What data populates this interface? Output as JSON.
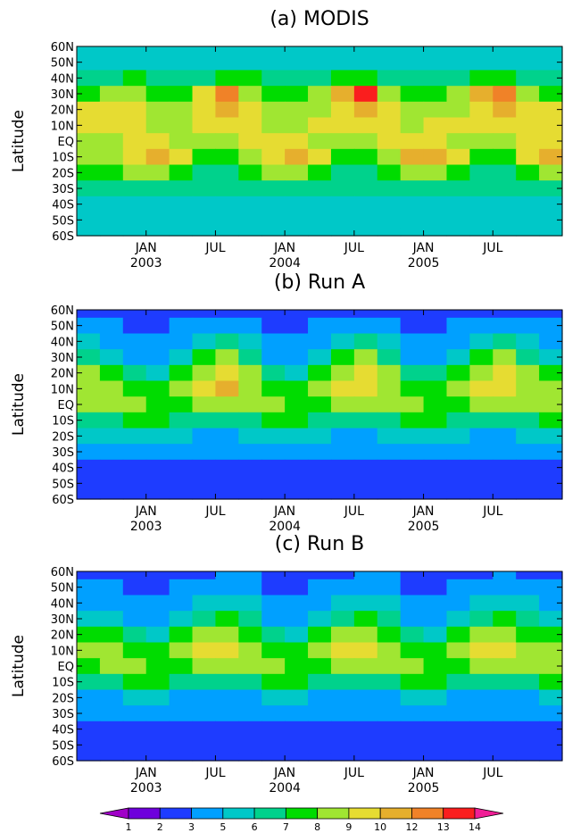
{
  "chart_data": [
    {
      "type": "heatmap",
      "title": "(a) MODIS",
      "ylabel": "Latitude",
      "yticks": [
        "60N",
        "50N",
        "40N",
        "30N",
        "20N",
        "10N",
        "EQ",
        "10S",
        "20S",
        "30S",
        "40S",
        "50S",
        "60S"
      ],
      "xticks": [
        {
          "month": "JAN",
          "year": "2003"
        },
        {
          "month": "JUL",
          "year": ""
        },
        {
          "month": "JAN",
          "year": "2004"
        },
        {
          "month": "JUL",
          "year": ""
        },
        {
          "month": "JAN",
          "year": "2005"
        },
        {
          "month": "JUL",
          "year": ""
        }
      ],
      "x_months": [
        "2002-08",
        "2002-10",
        "2002-12",
        "2003-02",
        "2003-04",
        "2003-06",
        "2003-08",
        "2003-10",
        "2003-12",
        "2004-02",
        "2004-04",
        "2004-06",
        "2004-08",
        "2004-10",
        "2004-12",
        "2005-02",
        "2005-04",
        "2005-06",
        "2005-08",
        "2005-10",
        "2005-12"
      ],
      "lat_bands": [
        "60N",
        "50N",
        "40N",
        "30N",
        "20N",
        "10N",
        "EQ",
        "10S",
        "20S",
        "30S",
        "40S",
        "50S",
        "60S"
      ],
      "values": [
        [
          5,
          5,
          5,
          5,
          5,
          5,
          5,
          5,
          5,
          5,
          5,
          5,
          5,
          5,
          5,
          5,
          5,
          5,
          5,
          5,
          5
        ],
        [
          5,
          5,
          5,
          5,
          5,
          5,
          5,
          5,
          5,
          5,
          5,
          5,
          5,
          5,
          5,
          5,
          5,
          5,
          5,
          5,
          5
        ],
        [
          6,
          6,
          7,
          6,
          6,
          6,
          7,
          7,
          6,
          6,
          6,
          7,
          7,
          6,
          6,
          6,
          6,
          7,
          7,
          6,
          6
        ],
        [
          7,
          8,
          8,
          7,
          7,
          9,
          12,
          8,
          7,
          7,
          8,
          10,
          13,
          8,
          7,
          7,
          8,
          10,
          12,
          8,
          7
        ],
        [
          9,
          9,
          9,
          8,
          8,
          9,
          10,
          9,
          8,
          8,
          8,
          9,
          10,
          9,
          8,
          8,
          8,
          9,
          10,
          9,
          9
        ],
        [
          9,
          9,
          9,
          8,
          8,
          9,
          9,
          9,
          8,
          8,
          9,
          9,
          9,
          9,
          8,
          9,
          9,
          9,
          9,
          9,
          9
        ],
        [
          8,
          8,
          9,
          9,
          8,
          8,
          8,
          9,
          9,
          9,
          8,
          8,
          8,
          9,
          9,
          9,
          8,
          8,
          8,
          9,
          9
        ],
        [
          8,
          8,
          9,
          10,
          9,
          7,
          7,
          8,
          9,
          10,
          9,
          7,
          7,
          8,
          10,
          10,
          9,
          7,
          7,
          9,
          10
        ],
        [
          7,
          7,
          8,
          8,
          7,
          6,
          6,
          7,
          8,
          8,
          7,
          6,
          6,
          7,
          8,
          8,
          7,
          6,
          6,
          7,
          8
        ],
        [
          6,
          6,
          6,
          6,
          6,
          6,
          6,
          6,
          6,
          6,
          6,
          6,
          6,
          6,
          6,
          6,
          6,
          6,
          6,
          6,
          6
        ],
        [
          5,
          5,
          5,
          5,
          5,
          5,
          5,
          5,
          5,
          5,
          5,
          5,
          5,
          5,
          5,
          5,
          5,
          5,
          5,
          5,
          5
        ],
        [
          5,
          5,
          5,
          5,
          5,
          5,
          5,
          5,
          5,
          5,
          5,
          5,
          5,
          5,
          5,
          5,
          5,
          5,
          5,
          5,
          5
        ],
        [
          5,
          5,
          5,
          5,
          5,
          5,
          5,
          5,
          5,
          5,
          5,
          5,
          5,
          5,
          5,
          5,
          5,
          5,
          5,
          5,
          5
        ]
      ]
    },
    {
      "type": "heatmap",
      "title": "(b) Run A",
      "ylabel": "Latitude",
      "yticks": [
        "60N",
        "50N",
        "40N",
        "30N",
        "20N",
        "10N",
        "EQ",
        "10S",
        "20S",
        "30S",
        "40S",
        "50S",
        "60S"
      ],
      "xticks": [
        {
          "month": "JAN",
          "year": "2003"
        },
        {
          "month": "JUL",
          "year": ""
        },
        {
          "month": "JAN",
          "year": "2004"
        },
        {
          "month": "JUL",
          "year": ""
        },
        {
          "month": "JAN",
          "year": "2005"
        },
        {
          "month": "JUL",
          "year": ""
        }
      ],
      "x_months": [
        "2002-08",
        "2002-10",
        "2002-12",
        "2003-02",
        "2003-04",
        "2003-06",
        "2003-08",
        "2003-10",
        "2003-12",
        "2004-02",
        "2004-04",
        "2004-06",
        "2004-08",
        "2004-10",
        "2004-12",
        "2005-02",
        "2005-04",
        "2005-06",
        "2005-08",
        "2005-10",
        "2005-12"
      ],
      "lat_bands": [
        "60N",
        "50N",
        "40N",
        "30N",
        "20N",
        "10N",
        "EQ",
        "10S",
        "20S",
        "30S",
        "40S",
        "50S",
        "60S"
      ],
      "values": [
        [
          2,
          2,
          2,
          2,
          2,
          2,
          2,
          2,
          2,
          2,
          2,
          2,
          2,
          2,
          2,
          2,
          2,
          2,
          2,
          2,
          2
        ],
        [
          3,
          3,
          2,
          2,
          3,
          3,
          3,
          3,
          2,
          2,
          3,
          3,
          3,
          3,
          2,
          2,
          3,
          3,
          3,
          3,
          3
        ],
        [
          5,
          4,
          3,
          3,
          4,
          5,
          6,
          5,
          3,
          3,
          4,
          5,
          6,
          5,
          3,
          3,
          4,
          5,
          6,
          5,
          4
        ],
        [
          6,
          5,
          4,
          4,
          5,
          7,
          8,
          6,
          4,
          4,
          5,
          7,
          8,
          6,
          4,
          4,
          5,
          7,
          8,
          6,
          5
        ],
        [
          8,
          7,
          6,
          5,
          7,
          8,
          9,
          8,
          6,
          5,
          7,
          8,
          9,
          8,
          6,
          6,
          7,
          8,
          9,
          8,
          7
        ],
        [
          8,
          8,
          7,
          7,
          8,
          9,
          10,
          8,
          7,
          7,
          8,
          9,
          9,
          8,
          7,
          7,
          8,
          9,
          9,
          8,
          8
        ],
        [
          8,
          8,
          8,
          7,
          7,
          8,
          8,
          8,
          8,
          7,
          7,
          8,
          8,
          8,
          8,
          7,
          7,
          8,
          8,
          8,
          8
        ],
        [
          6,
          6,
          7,
          7,
          6,
          6,
          6,
          6,
          7,
          7,
          6,
          6,
          6,
          6,
          7,
          7,
          6,
          6,
          6,
          6,
          7
        ],
        [
          5,
          5,
          5,
          5,
          5,
          4,
          4,
          5,
          5,
          5,
          5,
          4,
          4,
          5,
          5,
          5,
          5,
          4,
          4,
          5,
          5
        ],
        [
          3,
          3,
          3,
          3,
          3,
          3,
          3,
          3,
          3,
          3,
          3,
          3,
          3,
          3,
          3,
          3,
          3,
          3,
          3,
          3,
          3
        ],
        [
          2,
          2,
          2,
          2,
          2,
          2,
          2,
          2,
          2,
          2,
          2,
          2,
          2,
          2,
          2,
          2,
          2,
          2,
          2,
          2,
          2
        ],
        [
          2,
          2,
          2,
          2,
          2,
          2,
          2,
          2,
          2,
          2,
          2,
          2,
          2,
          2,
          2,
          2,
          2,
          2,
          2,
          2,
          2
        ],
        [
          2,
          2,
          2,
          2,
          2,
          2,
          2,
          2,
          2,
          2,
          2,
          2,
          2,
          2,
          2,
          2,
          2,
          2,
          2,
          2,
          2
        ]
      ]
    },
    {
      "type": "heatmap",
      "title": "(c) Run B",
      "ylabel": "Latitude",
      "yticks": [
        "60N",
        "50N",
        "40N",
        "30N",
        "20N",
        "10N",
        "EQ",
        "10S",
        "20S",
        "30S",
        "40S",
        "50S",
        "60S"
      ],
      "xticks": [
        {
          "month": "JAN",
          "year": "2003"
        },
        {
          "month": "JUL",
          "year": ""
        },
        {
          "month": "JAN",
          "year": "2004"
        },
        {
          "month": "JUL",
          "year": ""
        },
        {
          "month": "JAN",
          "year": "2005"
        },
        {
          "month": "JUL",
          "year": ""
        }
      ],
      "x_months": [
        "2002-08",
        "2002-10",
        "2002-12",
        "2003-02",
        "2003-04",
        "2003-06",
        "2003-08",
        "2003-10",
        "2003-12",
        "2004-02",
        "2004-04",
        "2004-06",
        "2004-08",
        "2004-10",
        "2004-12",
        "2005-02",
        "2005-04",
        "2005-06",
        "2005-08",
        "2005-10",
        "2005-12"
      ],
      "lat_bands": [
        "60N",
        "50N",
        "40N",
        "30N",
        "20N",
        "10N",
        "EQ",
        "10S",
        "20S",
        "30S",
        "40S",
        "50S",
        "60S"
      ],
      "values": [
        [
          2,
          2,
          2,
          2,
          2,
          2,
          3,
          3,
          2,
          2,
          2,
          2,
          3,
          3,
          2,
          2,
          2,
          2,
          3,
          2,
          2
        ],
        [
          3,
          3,
          2,
          2,
          3,
          3,
          3,
          3,
          2,
          2,
          3,
          3,
          3,
          3,
          2,
          2,
          3,
          3,
          3,
          3,
          3
        ],
        [
          4,
          4,
          3,
          3,
          4,
          5,
          5,
          5,
          3,
          3,
          4,
          5,
          5,
          5,
          3,
          3,
          4,
          5,
          5,
          5,
          4
        ],
        [
          5,
          5,
          4,
          4,
          5,
          6,
          7,
          6,
          4,
          4,
          5,
          6,
          7,
          6,
          4,
          4,
          5,
          6,
          7,
          6,
          5
        ],
        [
          7,
          7,
          6,
          5,
          7,
          8,
          8,
          7,
          6,
          5,
          7,
          8,
          8,
          7,
          6,
          5,
          7,
          8,
          8,
          7,
          7
        ],
        [
          8,
          8,
          7,
          7,
          8,
          9,
          9,
          8,
          7,
          7,
          8,
          9,
          9,
          8,
          7,
          7,
          8,
          9,
          9,
          8,
          8
        ],
        [
          7,
          8,
          8,
          7,
          7,
          8,
          8,
          8,
          8,
          7,
          7,
          8,
          8,
          8,
          8,
          7,
          7,
          8,
          8,
          8,
          8
        ],
        [
          6,
          6,
          7,
          7,
          6,
          6,
          6,
          6,
          7,
          7,
          6,
          6,
          6,
          6,
          7,
          7,
          6,
          6,
          6,
          6,
          7
        ],
        [
          4,
          4,
          5,
          5,
          4,
          4,
          4,
          4,
          5,
          5,
          4,
          4,
          4,
          4,
          5,
          5,
          4,
          4,
          4,
          4,
          5
        ],
        [
          3,
          3,
          3,
          3,
          3,
          3,
          3,
          3,
          3,
          3,
          3,
          3,
          3,
          3,
          3,
          3,
          3,
          3,
          3,
          3,
          3
        ],
        [
          2,
          2,
          2,
          2,
          2,
          2,
          2,
          2,
          2,
          2,
          2,
          2,
          2,
          2,
          2,
          2,
          2,
          2,
          2,
          2,
          2
        ],
        [
          2,
          2,
          2,
          2,
          2,
          2,
          2,
          2,
          2,
          2,
          2,
          2,
          2,
          2,
          2,
          2,
          2,
          2,
          2,
          2,
          2
        ],
        [
          2,
          2,
          2,
          2,
          2,
          2,
          2,
          2,
          2,
          2,
          2,
          2,
          2,
          2,
          2,
          2,
          2,
          2,
          2,
          2,
          2
        ]
      ]
    }
  ],
  "colorbar": {
    "labels": [
      "1",
      "2",
      "3",
      "5",
      "6",
      "7",
      "8",
      "9",
      "10",
      "12",
      "13",
      "14"
    ],
    "colors": [
      "#a000c8",
      "#6e00dc",
      "#1e3cff",
      "#00a0ff",
      "#00c8c8",
      "#00d28c",
      "#00dc00",
      "#a0e632",
      "#e6dc32",
      "#e6af2d",
      "#f08228",
      "#fa1e1e",
      "#f01e96"
    ]
  }
}
